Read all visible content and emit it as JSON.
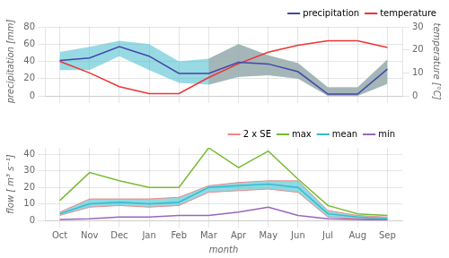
{
  "chart_data": [
    {
      "type": "line",
      "categories": [
        null,
        null,
        null,
        null,
        null,
        null,
        null,
        null,
        null,
        null,
        null,
        null
      ],
      "y_label": "precipitation [mm]",
      "y2_label": "temperature [°C]",
      "ylim": [
        0,
        80
      ],
      "yticks": [
        0,
        20,
        40,
        60,
        80
      ],
      "y2lim": [
        0,
        30
      ],
      "y2ticks": [
        0,
        10,
        20,
        30
      ],
      "grid": true,
      "legend": "upper right",
      "series": [
        {
          "name": "precipitation",
          "color": "#4444aa",
          "values": [
            41,
            44,
            57,
            46,
            26,
            26,
            39,
            37,
            28,
            2,
            2,
            31
          ],
          "upper": [
            51,
            57,
            64,
            60,
            40,
            43,
            60,
            47,
            38,
            10,
            10,
            42
          ],
          "lower": [
            30,
            30,
            46,
            30,
            15,
            13,
            22,
            24,
            20,
            0,
            0,
            14
          ],
          "colors": [
            "#44bbcc",
            "#44bbcc",
            "#44bbcc",
            "#44bbcc",
            "#44bbcc",
            "#aaaaaa",
            "#aaaaaa",
            "#aaaaaa",
            "#aaaaaa",
            "#aaaaaa",
            "#aaaaaa",
            "#aaaaaa"
          ]
        },
        {
          "name": "temperature",
          "color": "#ee3333",
          "axis": "y2",
          "values": [
            15,
            10,
            4,
            1,
            1,
            8,
            14,
            19,
            22,
            24,
            24,
            21
          ]
        }
      ]
    },
    {
      "type": "line",
      "categories": [
        "Oct",
        "Nov",
        "Dec",
        "Jan",
        "Feb",
        "Mar",
        "Apr",
        "May",
        "Jun",
        "Jul",
        "Aug",
        "Sep"
      ],
      "x_label": "month",
      "y_label": "flow [ m³ s⁻¹]",
      "ylim": [
        0,
        44
      ],
      "yticks": [
        0,
        10,
        20,
        30,
        40
      ],
      "grid": true,
      "legend": "upper right",
      "series": [
        {
          "name": "2 x SE",
          "color": "#ee8888",
          "upper": [
            5,
            13,
            13,
            13,
            14,
            21,
            23,
            24,
            24,
            6,
            3,
            2
          ],
          "lower": [
            3,
            8,
            9,
            8,
            9,
            17,
            18,
            19,
            17,
            2,
            1,
            0.5
          ],
          "colors": [
            "#33bbcc",
            "#33bbcc",
            "#33bbcc",
            "#33bbcc",
            "#33bbcc",
            "#33bbcc",
            "#33bbcc",
            "#33bbcc",
            "#33bbcc",
            "#33bbcc",
            "#33bbcc",
            "#33bbcc"
          ]
        },
        {
          "name": "max",
          "color": "#77bb33",
          "values": [
            12,
            29,
            24,
            20,
            20,
            44,
            32,
            42,
            25,
            9,
            4,
            3
          ]
        },
        {
          "name": "mean",
          "color": "#33bbcc",
          "values": [
            4,
            10,
            11,
            10,
            11,
            20,
            21,
            22,
            20,
            4,
            2,
            1
          ]
        },
        {
          "name": "min",
          "color": "#9966bb",
          "values": [
            0.5,
            1,
            2,
            2,
            3,
            3,
            5,
            8,
            3,
            1,
            0.5,
            0.3
          ]
        }
      ]
    }
  ]
}
